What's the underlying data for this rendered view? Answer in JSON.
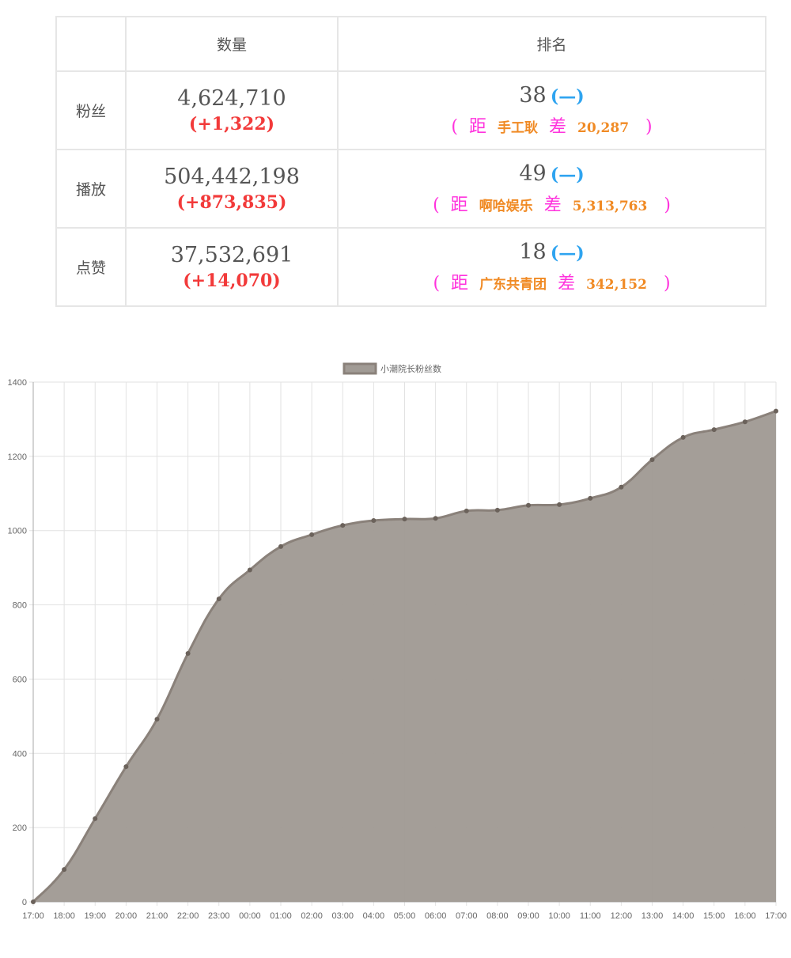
{
  "table": {
    "headers": [
      "",
      "数量",
      "排名"
    ],
    "rows": [
      {
        "label": "粉丝",
        "value": "4,624,710",
        "delta": "(+1,322)",
        "rank": "38",
        "rank_change": "(—)",
        "gap_open": "(",
        "dist": "距",
        "rival": "手工耿",
        "diff_label": "差",
        "diff": "20,287",
        "gap_close": ")"
      },
      {
        "label": "播放",
        "value": "504,442,198",
        "delta": "(+873,835)",
        "rank": "49",
        "rank_change": "(—)",
        "gap_open": "(",
        "dist": "距",
        "rival": "啊哈娱乐",
        "diff_label": "差",
        "diff": "5,313,763",
        "gap_close": ")"
      },
      {
        "label": "点赞",
        "value": "37,532,691",
        "delta": "(+14,070)",
        "rank": "18",
        "rank_change": "(—)",
        "gap_open": "(",
        "dist": "距",
        "rival": "广东共青团",
        "diff_label": "差",
        "diff": "342,152",
        "gap_close": ")"
      }
    ]
  },
  "chart_data": {
    "type": "area",
    "title": "",
    "legend": {
      "label": "小潮院长粉丝数",
      "placement": "top"
    },
    "x": [
      "17:00",
      "18:00",
      "19:00",
      "20:00",
      "21:00",
      "22:00",
      "23:00",
      "00:00",
      "01:00",
      "02:00",
      "03:00",
      "04:00",
      "05:00",
      "06:00",
      "07:00",
      "08:00",
      "09:00",
      "10:00",
      "11:00",
      "12:00",
      "13:00",
      "14:00",
      "15:00",
      "16:00",
      "17:00"
    ],
    "series": [
      {
        "name": "小潮院长粉丝数",
        "values": [
          0,
          87,
          224,
          364,
          492,
          669,
          816,
          894,
          957,
          989,
          1014,
          1027,
          1031,
          1033,
          1053,
          1055,
          1068,
          1070,
          1087,
          1117,
          1191,
          1251,
          1272,
          1293,
          1322
        ]
      }
    ],
    "ylim": [
      0,
      1400
    ],
    "yticks": [
      0,
      200,
      400,
      600,
      800,
      1000,
      1200,
      1400
    ],
    "grid": true,
    "colors": {
      "fill": "#a19b95",
      "line": "#8a817a",
      "point": "#6b625b"
    }
  }
}
